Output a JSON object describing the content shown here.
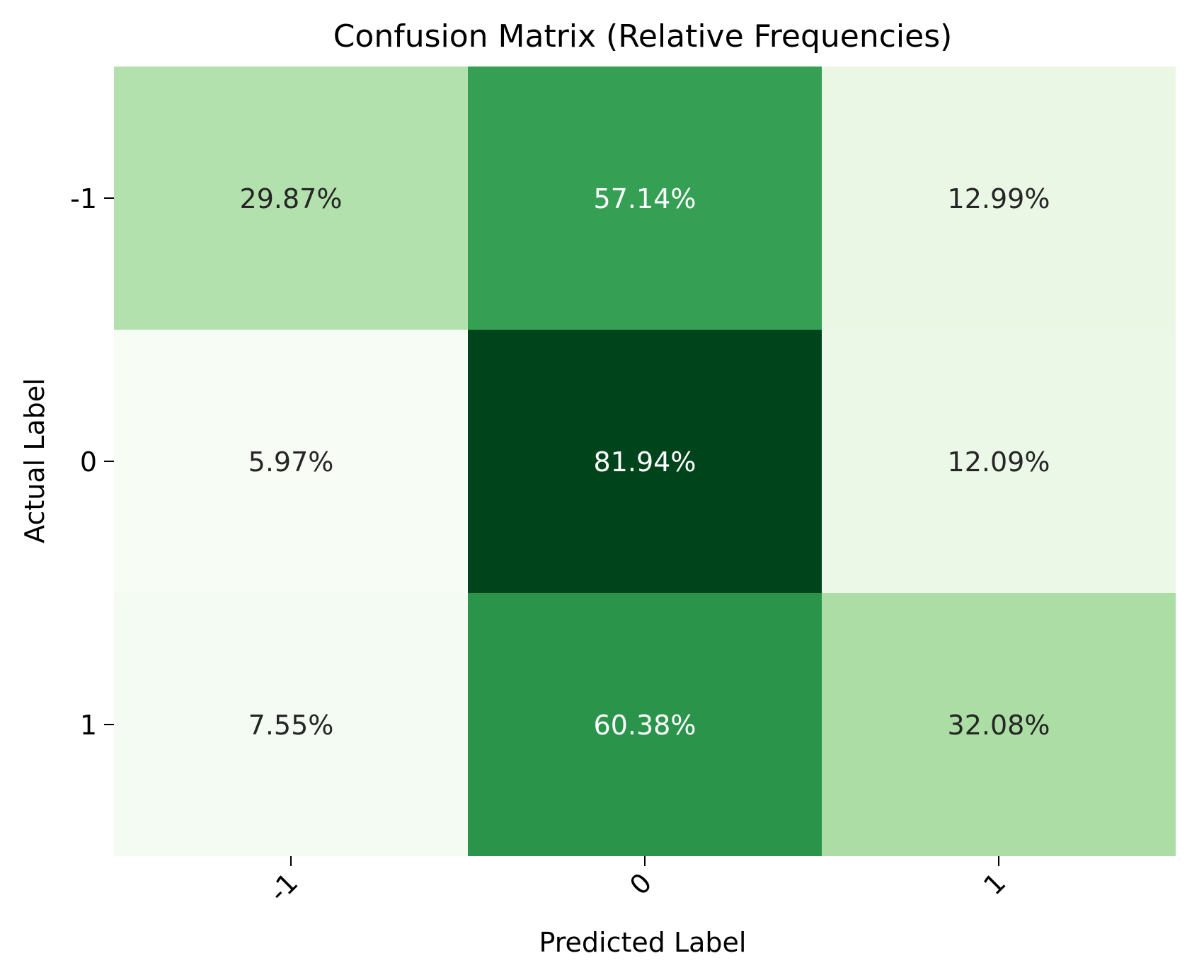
{
  "chart_data": {
    "type": "heatmap",
    "title": "Confusion Matrix (Relative Frequencies)",
    "xlabel": "Predicted Label",
    "ylabel": "Actual Label",
    "x_categories": [
      "-1",
      "0",
      "1"
    ],
    "y_categories": [
      "-1",
      "0",
      "1"
    ],
    "values": [
      [
        29.87,
        57.14,
        12.99
      ],
      [
        5.97,
        81.94,
        12.09
      ],
      [
        7.55,
        60.38,
        32.08
      ]
    ],
    "cell_labels": [
      [
        "29.87%",
        "57.14%",
        "12.99%"
      ],
      [
        "5.97%",
        "81.94%",
        "12.09%"
      ],
      [
        "7.55%",
        "60.38%",
        "32.08%"
      ]
    ],
    "colormap": "Greens",
    "colorbar": false,
    "x_tick_rotation": 45
  }
}
